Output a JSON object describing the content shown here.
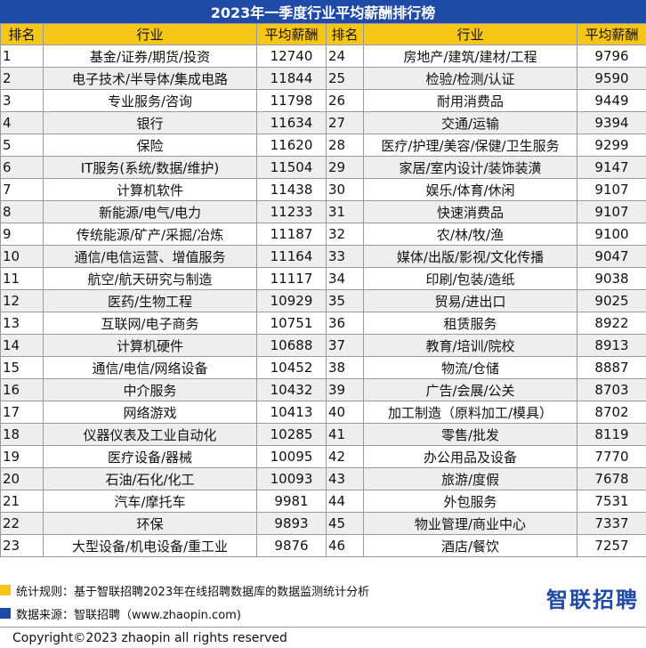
{
  "title": "2023年一季度行业平均薪酬排行榜",
  "columns": {
    "rank": "排名",
    "industry": "行业",
    "salary": "平均薪酬"
  },
  "chart_data": {
    "type": "table",
    "title": "2023年一季度行业平均薪酬排行榜",
    "headers": [
      "排名",
      "行业",
      "平均薪酬",
      "排名",
      "行业",
      "平均薪酬"
    ],
    "rows": [
      [
        1,
        "基金/证券/期货/投资",
        12740
      ],
      [
        2,
        "电子技术/半导体/集成电路",
        11844
      ],
      [
        3,
        "专业服务/咨询",
        11798
      ],
      [
        4,
        "银行",
        11634
      ],
      [
        5,
        "保险",
        11620
      ],
      [
        6,
        "IT服务(系统/数据/维护)",
        11504
      ],
      [
        7,
        "计算机软件",
        11438
      ],
      [
        8,
        "新能源/电气/电力",
        11233
      ],
      [
        9,
        "传统能源/矿产/采掘/冶炼",
        11187
      ],
      [
        10,
        "通信/电信运营、增值服务",
        11164
      ],
      [
        11,
        "航空/航天研究与制造",
        11117
      ],
      [
        12,
        "医药/生物工程",
        10929
      ],
      [
        13,
        "互联网/电子商务",
        10751
      ],
      [
        14,
        "计算机硬件",
        10688
      ],
      [
        15,
        "通信/电信/网络设备",
        10452
      ],
      [
        16,
        "中介服务",
        10432
      ],
      [
        17,
        "网络游戏",
        10413
      ],
      [
        18,
        "仪器仪表及工业自动化",
        10285
      ],
      [
        19,
        "医疗设备/器械",
        10095
      ],
      [
        20,
        "石油/石化/化工",
        10093
      ],
      [
        21,
        "汽车/摩托车",
        9981
      ],
      [
        22,
        "环保",
        9893
      ],
      [
        23,
        "大型设备/机电设备/重工业",
        9876
      ],
      [
        24,
        "房地产/建筑/建材/工程",
        9796
      ],
      [
        25,
        "检验/检测/认证",
        9590
      ],
      [
        26,
        "耐用消费品",
        9449
      ],
      [
        27,
        "交通/运输",
        9394
      ],
      [
        28,
        "医疗/护理/美容/保健/卫生服务",
        9299
      ],
      [
        29,
        "家居/室内设计/装饰装潢",
        9147
      ],
      [
        30,
        "娱乐/体育/休闲",
        9107
      ],
      [
        31,
        "快速消费品",
        9107
      ],
      [
        32,
        "农/林/牧/渔",
        9100
      ],
      [
        33,
        "媒体/出版/影视/文化传播",
        9047
      ],
      [
        34,
        "印刷/包装/造纸",
        9038
      ],
      [
        35,
        "贸易/进出口",
        9025
      ],
      [
        36,
        "租赁服务",
        8922
      ],
      [
        37,
        "教育/培训/院校",
        8913
      ],
      [
        38,
        "物流/仓储",
        8887
      ],
      [
        39,
        "广告/会展/公关",
        8703
      ],
      [
        40,
        "加工制造（原料加工/模具）",
        8702
      ],
      [
        41,
        "零售/批发",
        8119
      ],
      [
        42,
        "办公用品及设备",
        7770
      ],
      [
        43,
        "旅游/度假",
        7678
      ],
      [
        44,
        "外包服务",
        7531
      ],
      [
        45,
        "物业管理/商业中心",
        7337
      ],
      [
        46,
        "酒店/餐饮",
        7257
      ]
    ]
  },
  "footer": {
    "rule": "统计规则：基于智联招聘2023年在线招聘数据库的数据监测统计分析",
    "source": "数据来源：智联招聘（www.zhaopin.com)",
    "logo": "智联招聘",
    "copyright": "Copyright©2023 zhaopin all rights reserved"
  },
  "colors": {
    "title_bg": "#1f4aa8",
    "header_bg": "#f5c518",
    "stripe": "#eeeeee"
  }
}
